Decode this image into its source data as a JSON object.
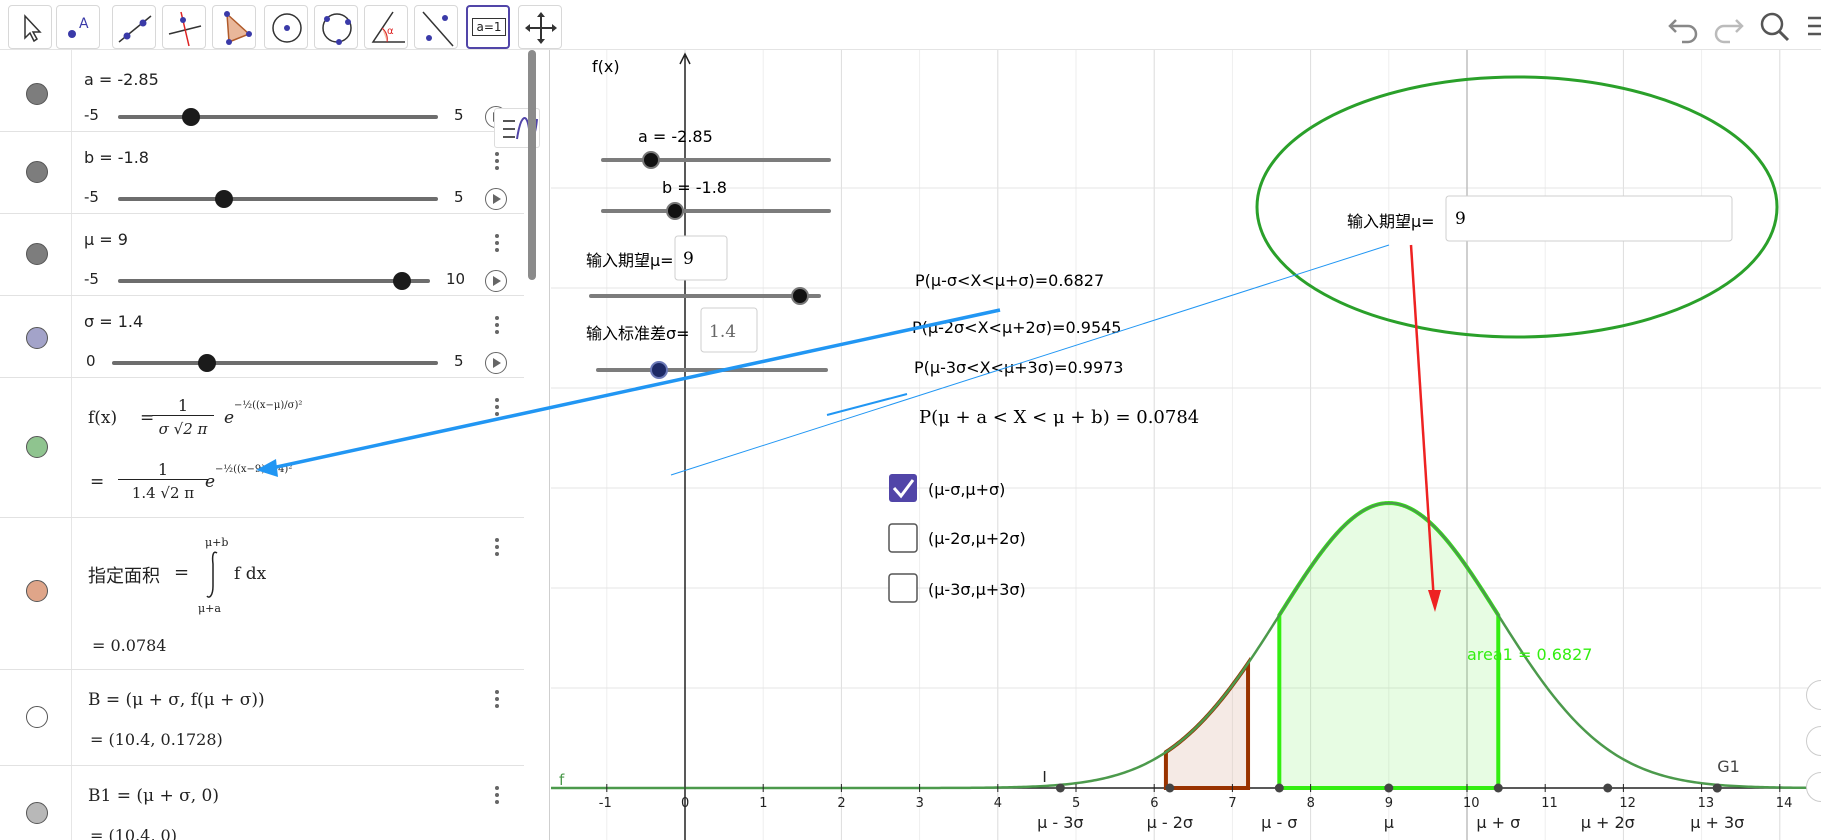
{
  "toolbar": {
    "tools": [
      "move-tool",
      "point-tool",
      "line-tool",
      "perpendicular-tool",
      "polygon-tool",
      "circle-tool",
      "circle-three-points-tool",
      "angle-tool",
      "reflect-tool",
      "slider-tool",
      "move-view-tool"
    ],
    "slider_tool_label": "a=1"
  },
  "algebra": {
    "a": {
      "label": "a = -2.85",
      "min": "-5",
      "max": "5",
      "value_fraction": 0.215
    },
    "b": {
      "label": "b = -1.8",
      "min": "-5",
      "max": "5",
      "value_fraction": 0.32
    },
    "mu": {
      "label": "μ = 9",
      "min": "-5",
      "max": "10",
      "value_fraction": 0.933
    },
    "sigma": {
      "label": "σ = 1.4",
      "min": "0",
      "max": "5",
      "value_fraction": 0.28
    },
    "f": {
      "name": "f(x)",
      "def_eq": "=",
      "frac_num": "1",
      "frac_den": "σ √2 π",
      "exp": "−½((x−μ)/σ)²",
      "val_eq": "=",
      "val_num": "1",
      "val_den": "1.4 √2 π",
      "val_exp": "−½((x−9)/1.4)²"
    },
    "area": {
      "name": "指定面积",
      "eq": "=",
      "upper": "μ+b",
      "lower": "μ+a",
      "integrand": "f dx",
      "value": "= 0.0784"
    },
    "B": {
      "def": "B = (μ + σ, f(μ + σ))",
      "value": "= (10.4, 0.1728)"
    },
    "B1": {
      "def": "B1 = (μ + σ, 0)",
      "value": "= (10.4, 0)"
    }
  },
  "graphics": {
    "yaxis_label": "f(x)",
    "slider_a_label": "a = -2.85",
    "slider_b_label": "b = -1.8",
    "input_mu_label": "输入期望μ=",
    "input_mu_value": "9",
    "input_sigma_label": "输入标准差σ=",
    "input_sigma_value": "1.4",
    "p1": "P(μ-σ<X<μ+σ)=0.6827",
    "p2": "P(μ-2σ<X<μ+2σ)=0.9545",
    "p3": "P(μ-3σ<X<μ+3σ)=0.9973",
    "pab": "P(μ + a < X < μ + b) = 0.0784",
    "cb1_label": "(μ-σ,μ+σ)",
    "cb1_checked": true,
    "cb2_label": "(μ-2σ,μ+2σ)",
    "cb2_checked": false,
    "cb3_label": "(μ-3σ,μ+3σ)",
    "cb3_checked": false,
    "big_input_label": "输入期望μ=",
    "big_input_value": "9",
    "area1_label": "area1 = 0.6827",
    "f_label": "f",
    "I_label": "I",
    "G1_label": "G1",
    "x_ticks": [
      "-1",
      "0",
      "1",
      "2",
      "3",
      "4",
      "5",
      "6",
      "7",
      "8",
      "9",
      "10",
      "11",
      "12",
      "13",
      "14"
    ],
    "sigma_marks": [
      "μ - 3σ",
      "μ - 2σ",
      "μ - σ",
      "μ",
      "μ + σ",
      "μ + 2σ",
      "μ + 3σ"
    ]
  },
  "colors": {
    "accent": "#5145a8",
    "green": "#33ee11",
    "curve": "#4c9a4c",
    "brown": "#993300",
    "blue_arrow": "#2196f3",
    "red_arrow": "#ee2222",
    "ellipse": "#2aa02a"
  }
}
